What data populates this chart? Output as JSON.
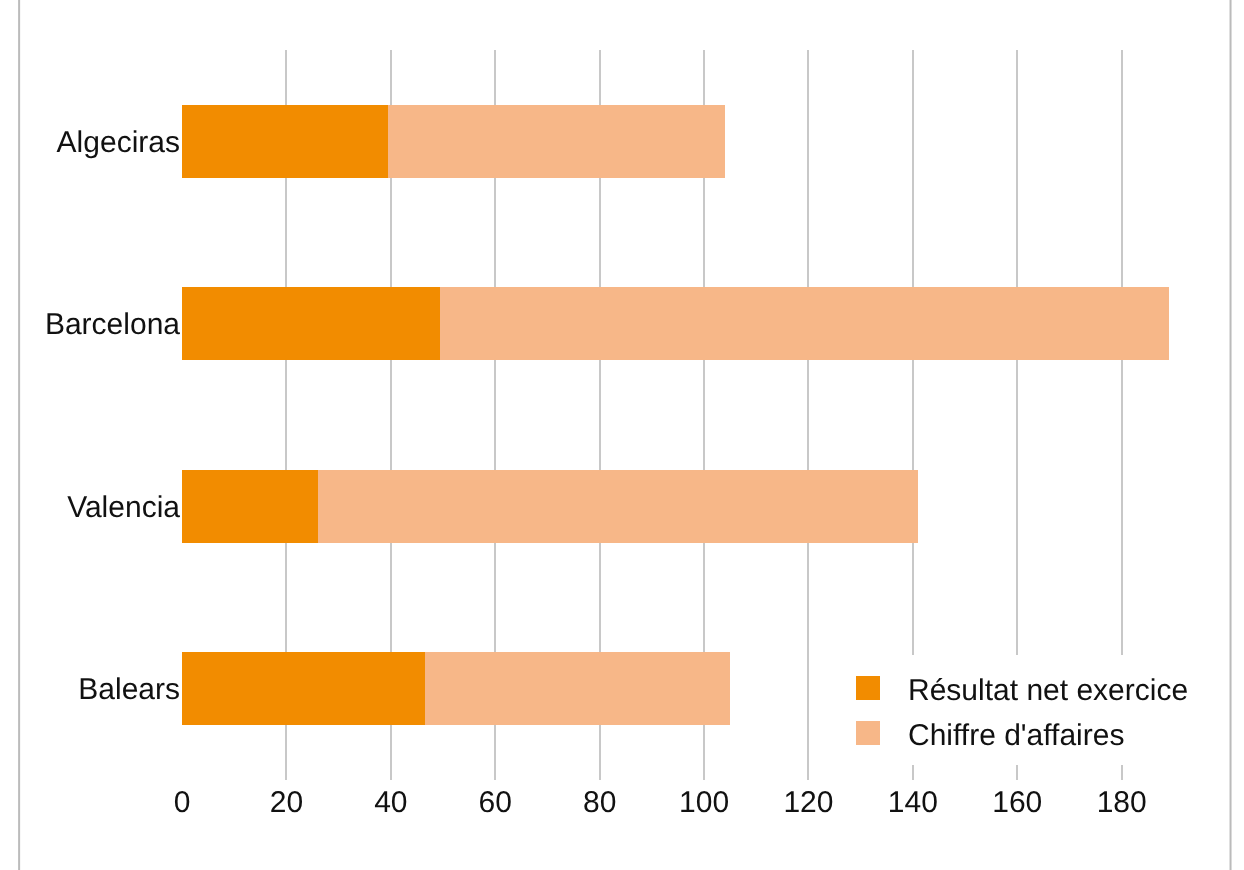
{
  "chart_data": {
    "type": "bar",
    "orientation": "horizontal",
    "stacked": true,
    "categories": [
      "Algeciras",
      "Barcelona",
      "Valencia",
      "Balears"
    ],
    "series": [
      {
        "name": "Résultat net exercice",
        "color": "#f28c00",
        "values": [
          39.5,
          49.5,
          26,
          46.5
        ]
      },
      {
        "name": "Chiffre d'affaires",
        "color": "#f7b788",
        "values": [
          64.5,
          139.5,
          115,
          58.5
        ]
      }
    ],
    "xlim": [
      0,
      195
    ],
    "xticks": [
      0,
      20,
      40,
      60,
      80,
      100,
      120,
      140,
      160,
      180
    ],
    "grid": "x",
    "legend": "bottom right"
  }
}
